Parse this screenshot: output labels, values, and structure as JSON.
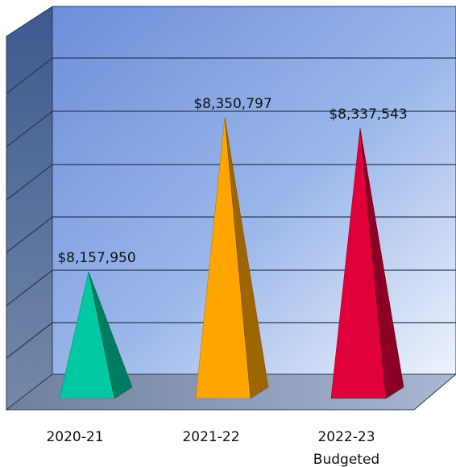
{
  "chart_data": {
    "type": "bar",
    "style": "3d-cone",
    "categories": [
      [
        "2020-21"
      ],
      [
        "2021-22"
      ],
      [
        "2022-23",
        "Budgeted"
      ]
    ],
    "values": [
      8157950,
      8350797,
      8337543
    ],
    "value_labels": [
      "$8,157,950",
      "$8,350,797",
      "$8,337,543"
    ],
    "colors": [
      "#00c8a0",
      "#ffa500",
      "#e0003a"
    ],
    "ylim": [
      8000000,
      8400000
    ],
    "grid": true,
    "legend": "none"
  }
}
